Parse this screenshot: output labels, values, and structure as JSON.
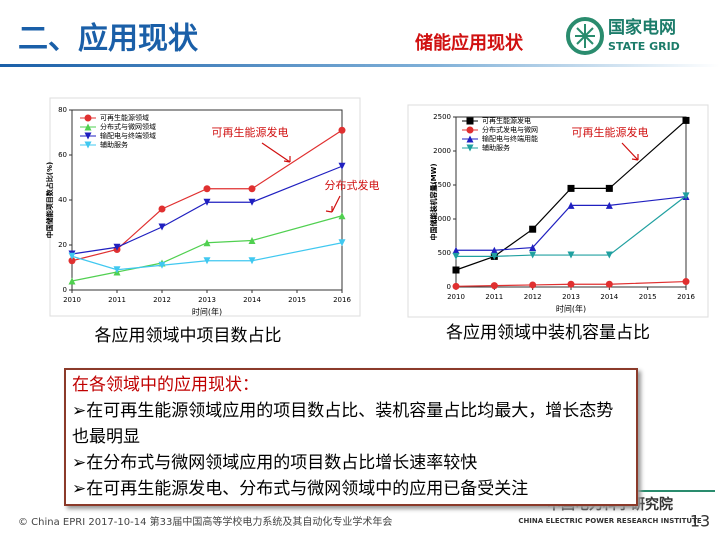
{
  "header": {
    "title": "二、应用现状",
    "section": "储能应用现状",
    "logo_name": "国家电网",
    "logo_en": "STATE GRID"
  },
  "captions": [
    "各应用领域中项目数占比",
    "各应用领域中装机容量占比"
  ],
  "summary": {
    "title": "在各领域中的应用现状：",
    "bullets": [
      "在可再生能源领域应用的项目数占比、装机容量占比均最大，增长态势也最明显",
      "在分布式与微网领域应用的项目数占比增长速率较快",
      "在可再生能源发电、分布式与微网领域中的应用已备受关注"
    ]
  },
  "footer": {
    "text": "© China EPRI  2017-10-14   第33届中国高等学校电力系统及其自动化专业学术年会",
    "org": "中国电力科学研究院",
    "org_en": "CHINA ELECTRIC POWER RESEARCH INSTITUTE",
    "page": "13"
  },
  "chart_data": [
    {
      "type": "line",
      "xlabel": "时间(年)",
      "ylabel": "中国储能项目数占比(%)",
      "x": [
        2010,
        2011,
        2012,
        2013,
        2014,
        2016
      ],
      "xlim": [
        2010,
        2016
      ],
      "xticks": [
        2010,
        2011,
        2012,
        2013,
        2014,
        2015,
        2016
      ],
      "ylim": [
        0,
        80
      ],
      "yticks": [
        0,
        20,
        40,
        60,
        80
      ],
      "series": [
        {
          "name": "可再生能源领域",
          "color": "#e03030",
          "marker": "circle",
          "values": [
            13,
            18,
            36,
            45,
            45,
            71
          ]
        },
        {
          "name": "分布式与微网领域",
          "color": "#50d050",
          "marker": "triangle-up",
          "values": [
            4,
            8,
            12,
            21,
            22,
            33
          ]
        },
        {
          "name": "输配电与终端领域",
          "color": "#2020c0",
          "marker": "triangle-down",
          "values": [
            16,
            19,
            28,
            39,
            39,
            55
          ]
        },
        {
          "name": "辅助服务",
          "color": "#40c8f0",
          "marker": "triangle-down",
          "values": [
            15,
            9,
            11,
            13,
            13,
            21
          ]
        }
      ],
      "annotations": [
        "可再生能源发电",
        "分布式发电"
      ]
    },
    {
      "type": "line",
      "xlabel": "时间(年)",
      "ylabel": "中国储能装机容量(MW)",
      "x": [
        2010,
        2011,
        2012,
        2013,
        2014,
        2016
      ],
      "xlim": [
        2010,
        2016
      ],
      "xticks": [
        2010,
        2011,
        2012,
        2013,
        2014,
        2015,
        2016
      ],
      "ylim": [
        0,
        2500
      ],
      "yticks": [
        0,
        500,
        1000,
        1500,
        2000,
        2500
      ],
      "series": [
        {
          "name": "可再生能源发电",
          "color": "#000000",
          "marker": "square",
          "values": [
            250,
            450,
            850,
            1450,
            1450,
            2450
          ]
        },
        {
          "name": "分布式发电与微网",
          "color": "#e03030",
          "marker": "circle",
          "values": [
            10,
            20,
            30,
            40,
            40,
            80
          ]
        },
        {
          "name": "输配电与终端用能",
          "color": "#2020c0",
          "marker": "triangle-up",
          "values": [
            540,
            540,
            580,
            1200,
            1200,
            1330
          ]
        },
        {
          "name": "辅助服务",
          "color": "#20a0a0",
          "marker": "triangle-down",
          "values": [
            450,
            450,
            470,
            470,
            470,
            1340
          ]
        }
      ],
      "annotations": [
        "可再生能源发电"
      ]
    }
  ]
}
